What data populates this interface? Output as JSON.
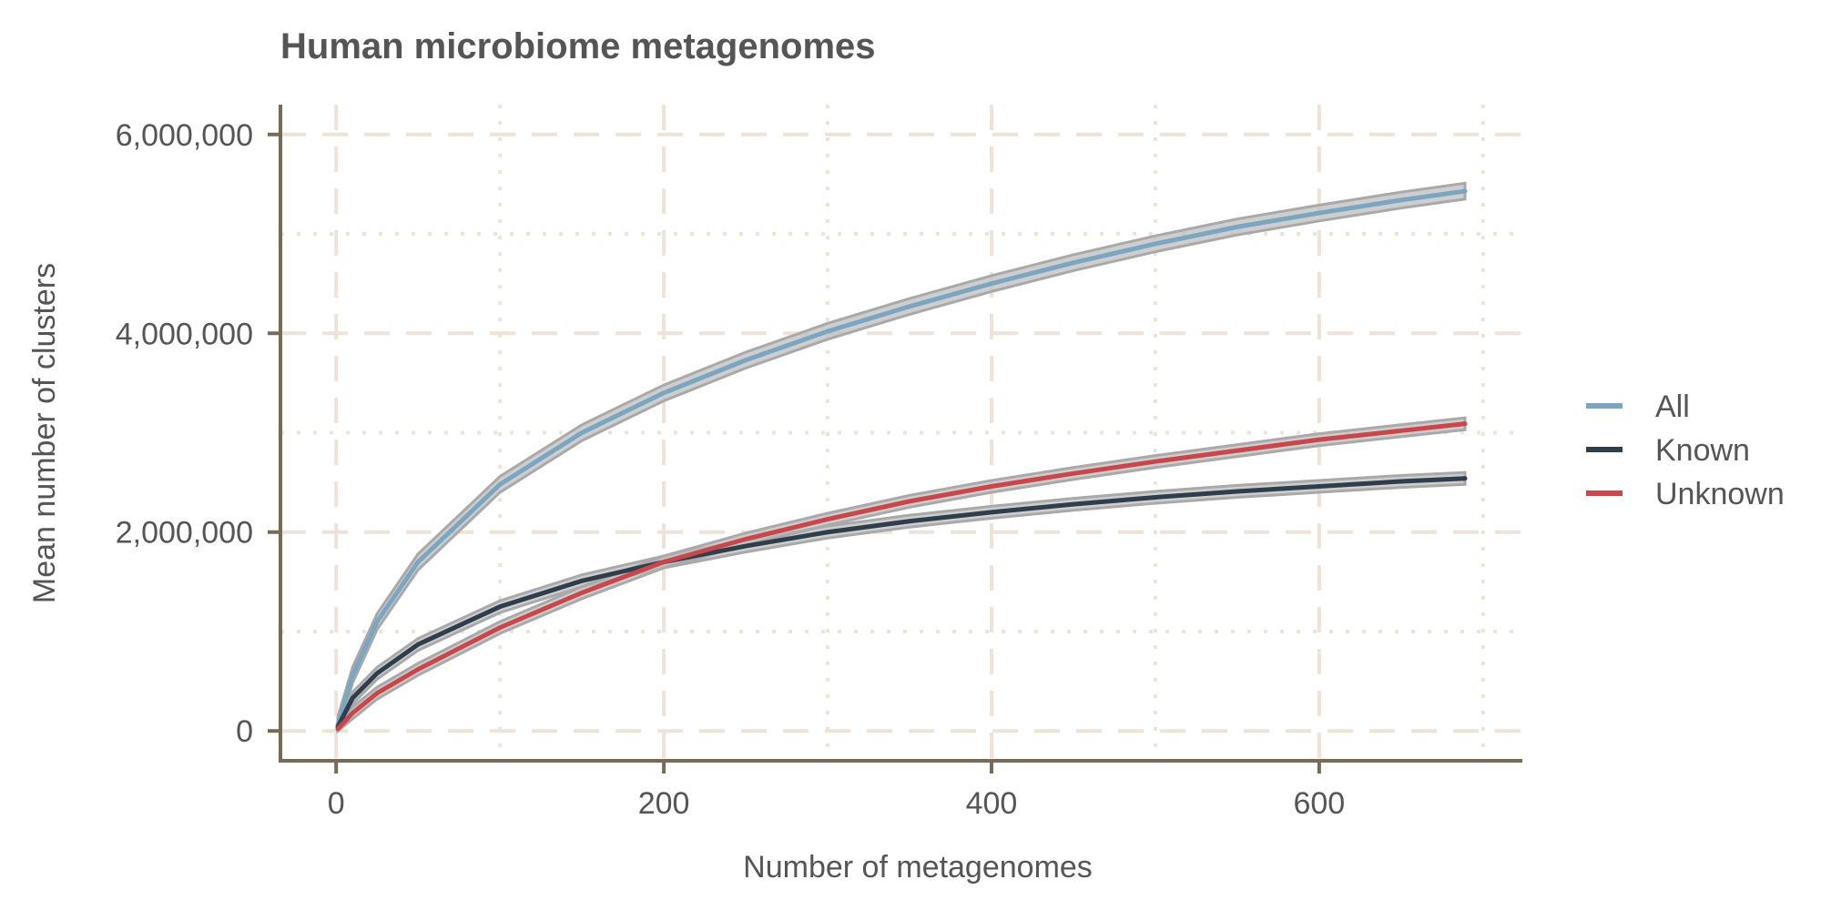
{
  "chart_data": {
    "type": "line",
    "title": "Human microbiome metagenomes",
    "xlabel": "Number of metagenomes",
    "ylabel": "Mean number of clusters",
    "xlim": [
      -34,
      724
    ],
    "ylim": [
      -300000,
      6300000
    ],
    "x_ticks": [
      0,
      200,
      400,
      600
    ],
    "x_tick_labels": [
      "0",
      "200",
      "400",
      "600"
    ],
    "x_minor_ticks": [
      100,
      300,
      500,
      700
    ],
    "y_ticks": [
      0,
      2000000,
      4000000,
      6000000
    ],
    "y_tick_labels": [
      "0",
      "2,000,000",
      "4,000,000",
      "6,000,000"
    ],
    "y_minor_ticks": [
      1000000,
      3000000,
      5000000
    ],
    "grid": true,
    "legend_position": "right",
    "series": [
      {
        "name": "All",
        "color": "#7aa6c2",
        "x": [
          1,
          10,
          25,
          50,
          100,
          150,
          200,
          250,
          300,
          350,
          400,
          450,
          500,
          550,
          600,
          650,
          689
        ],
        "y": [
          60000,
          560000,
          1100000,
          1700000,
          2480000,
          3000000,
          3400000,
          3730000,
          4020000,
          4270000,
          4500000,
          4710000,
          4900000,
          5070000,
          5210000,
          5340000,
          5430000
        ],
        "band": 80000
      },
      {
        "name": "Known",
        "color": "#2f3e4c",
        "x": [
          1,
          10,
          25,
          50,
          100,
          150,
          200,
          250,
          300,
          350,
          400,
          450,
          500,
          550,
          600,
          650,
          689
        ],
        "y": [
          40000,
          330000,
          580000,
          870000,
          1250000,
          1510000,
          1700000,
          1860000,
          2000000,
          2110000,
          2200000,
          2280000,
          2350000,
          2410000,
          2460000,
          2510000,
          2540000
        ],
        "band": 60000
      },
      {
        "name": "Unknown",
        "color": "#c9474a",
        "x": [
          1,
          10,
          25,
          50,
          100,
          150,
          200,
          250,
          300,
          350,
          400,
          450,
          500,
          550,
          600,
          650,
          689
        ],
        "y": [
          20000,
          180000,
          380000,
          620000,
          1040000,
          1390000,
          1700000,
          1930000,
          2130000,
          2310000,
          2460000,
          2590000,
          2710000,
          2820000,
          2930000,
          3020000,
          3090000
        ],
        "band": 60000
      }
    ]
  }
}
